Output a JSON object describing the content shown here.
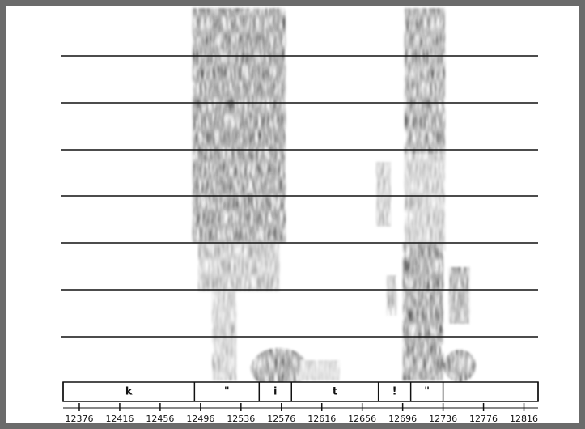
{
  "chart_data": {
    "type": "spectrogram",
    "xlim": [
      12360,
      12830
    ],
    "xticks": [
      12376,
      12416,
      12456,
      12496,
      12536,
      12576,
      12616,
      12656,
      12696,
      12736,
      12776,
      12816
    ],
    "segment_edges": [
      12360,
      12490,
      12554,
      12586,
      12672,
      12704,
      12736,
      12830
    ],
    "segment_labels": [
      "k",
      "\"",
      "i",
      "t",
      "!",
      "\"",
      null
    ]
  }
}
